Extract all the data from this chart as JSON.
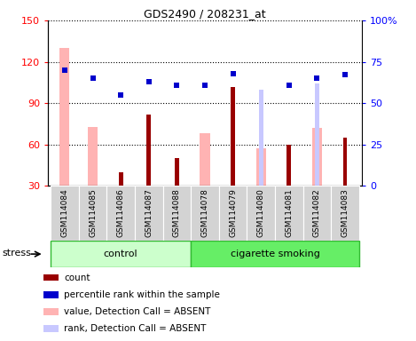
{
  "title": "GDS2490 / 208231_at",
  "samples": [
    "GSM114084",
    "GSM114085",
    "GSM114086",
    "GSM114087",
    "GSM114088",
    "GSM114078",
    "GSM114079",
    "GSM114080",
    "GSM114081",
    "GSM114082",
    "GSM114083"
  ],
  "count_values": [
    null,
    null,
    40,
    82,
    50,
    null,
    102,
    null,
    60,
    null,
    65
  ],
  "percentile_rank": [
    70,
    65,
    55,
    63,
    61,
    61,
    68,
    null,
    61,
    65,
    67
  ],
  "absent_value": [
    130,
    73,
    null,
    null,
    null,
    68,
    null,
    57,
    null,
    72,
    null
  ],
  "absent_rank": [
    null,
    null,
    null,
    null,
    null,
    null,
    null,
    58,
    null,
    62,
    null
  ],
  "ylim_left": [
    30,
    150
  ],
  "ylim_right": [
    0,
    100
  ],
  "yticks_left": [
    30,
    60,
    90,
    120,
    150
  ],
  "yticks_right": [
    0,
    25,
    50,
    75,
    100
  ],
  "ytick_labels_left": [
    "30",
    "60",
    "90",
    "120",
    "150"
  ],
  "ytick_labels_right": [
    "0",
    "25",
    "50",
    "75",
    "100%"
  ],
  "color_count": "#990000",
  "color_percentile": "#0000cc",
  "color_absent_value": "#ffb3b3",
  "color_absent_rank": "#c8c8ff",
  "bar_width": 0.35,
  "narrow_bar_width": 0.15,
  "ctrl_indices": [
    0,
    1,
    2,
    3,
    4
  ],
  "smoke_indices": [
    5,
    6,
    7,
    8,
    9,
    10
  ],
  "ctrl_color": "#ccffcc",
  "smoke_color": "#66ee66",
  "group_border_color": "#33bb33",
  "legend_items": [
    {
      "label": "count",
      "color": "#990000",
      "size": 8
    },
    {
      "label": "percentile rank within the sample",
      "color": "#0000cc",
      "size": 8
    },
    {
      "label": "value, Detection Call = ABSENT",
      "color": "#ffb3b3",
      "size": 8
    },
    {
      "label": "rank, Detection Call = ABSENT",
      "color": "#c8c8ff",
      "size": 8
    }
  ],
  "grid_yticks": [
    60,
    90,
    120,
    150
  ],
  "stress_label": "stress"
}
